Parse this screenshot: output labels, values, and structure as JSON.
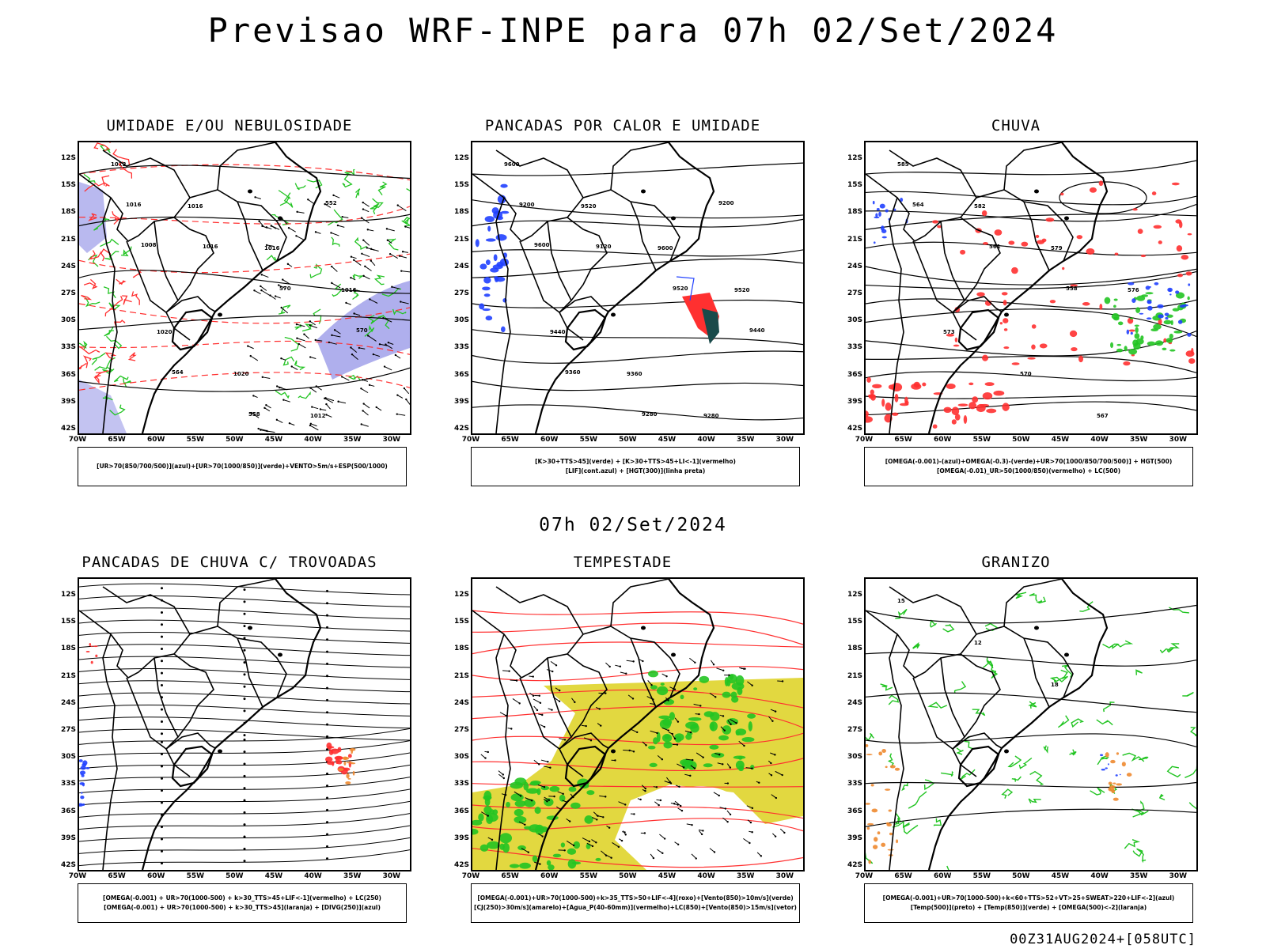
{
  "title": "Previsao WRF-INPE  para 07h 02/Set/2024",
  "subtitle": "07h 02/Set/2024",
  "footer": "00Z31AUG2024+[058UTC]",
  "lat_labels": [
    "12S",
    "15S",
    "18S",
    "21S",
    "24S",
    "27S",
    "30S",
    "33S",
    "36S",
    "39S",
    "42S"
  ],
  "lon_labels": [
    "70W",
    "65W",
    "60W",
    "55W",
    "50W",
    "45W",
    "40W",
    "35W",
    "30W"
  ],
  "colors": {
    "green": "#22c422",
    "red": "#ff3030",
    "blue": "#2040ff",
    "violet": "#9b9be8",
    "yellow": "#e2d840",
    "orange": "#ee8a30",
    "darkgreen": "#1a4a4a"
  },
  "panels": [
    {
      "title": "UMIDADE E/OU NEBULOSIDADE",
      "legend": [
        "[UR>70(850/700/500)](azul)+[UR>70(1000/850)](verde)+VENTO>5m/s+ESP(500/1000)"
      ],
      "contour_labels": [
        "1012",
        "1016",
        "1016",
        "1016",
        "1020",
        "1020",
        "1012",
        "1016",
        "1016",
        "570",
        "570",
        "564",
        "558",
        "552",
        "1008"
      ]
    },
    {
      "title": "PANCADAS POR CALOR E UMIDADE",
      "legend": [
        "[K>30+TTS>45](verde) + [K>30+TTS>45+LI<-1](vermelho)",
        "[LIF](cont.azul) + [HGT(300)](linha preta)"
      ],
      "contour_labels": [
        "9600",
        "9520",
        "9600",
        "9520",
        "9440",
        "9360",
        "9280",
        "9200",
        "9120",
        "9520",
        "9440",
        "9360",
        "9280",
        "9200",
        "9600"
      ]
    },
    {
      "title": "CHUVA",
      "legend": [
        "[OMEGA(-0.001)-(azul)+OMEGA(-0.3)-(verde)+UR>70(1000/850/700/500)] + HGT(500)",
        "[OMEGA(-0.01)_UR>50(1000/850)(vermelho) + LC(500)"
      ],
      "contour_labels": [
        "585",
        "582",
        "579",
        "576",
        "573",
        "570",
        "567",
        "564",
        "561",
        "558"
      ]
    },
    {
      "title": "PANCADAS DE CHUVA C/ TROVOADAS",
      "legend": [
        "[OMEGA(-0.001) + UR>70(1000-500) + k>30_TTS>45+LIF<-1](vermelho) + LC(250)",
        "[OMEGA(-0.001) + UR>70(1000-500) + k>30_TTS>45](laranja) + [DIVG(250)](azul)"
      ],
      "contour_labels": []
    },
    {
      "title": "TEMPESTADE",
      "legend": [
        "[OMEGA(-0.001)+UR>70(1000-500)+k>35_TTS>50+LIF<-4](roxo)+[Vento(850)>10m/s](verde)",
        "[CJ(250)>30m/s](amarelo)+[Agua_P(40-60mm)](vermelho)+LC(850)+[Vento(850)>15m/s](vetor)"
      ],
      "contour_labels": []
    },
    {
      "title": "GRANIZO",
      "legend": [
        "[OMEGA(-0.001)+UR>70(1000-500)+k<60+TTS>52+VT>25+SWEAT>220+LIF<-2](azul)",
        "[Temp(500)](preto) + [Temp(850)](verde) + [OMEGA(500)<-2](laranja)"
      ],
      "contour_labels": [
        "15",
        "12",
        "18"
      ]
    }
  ]
}
